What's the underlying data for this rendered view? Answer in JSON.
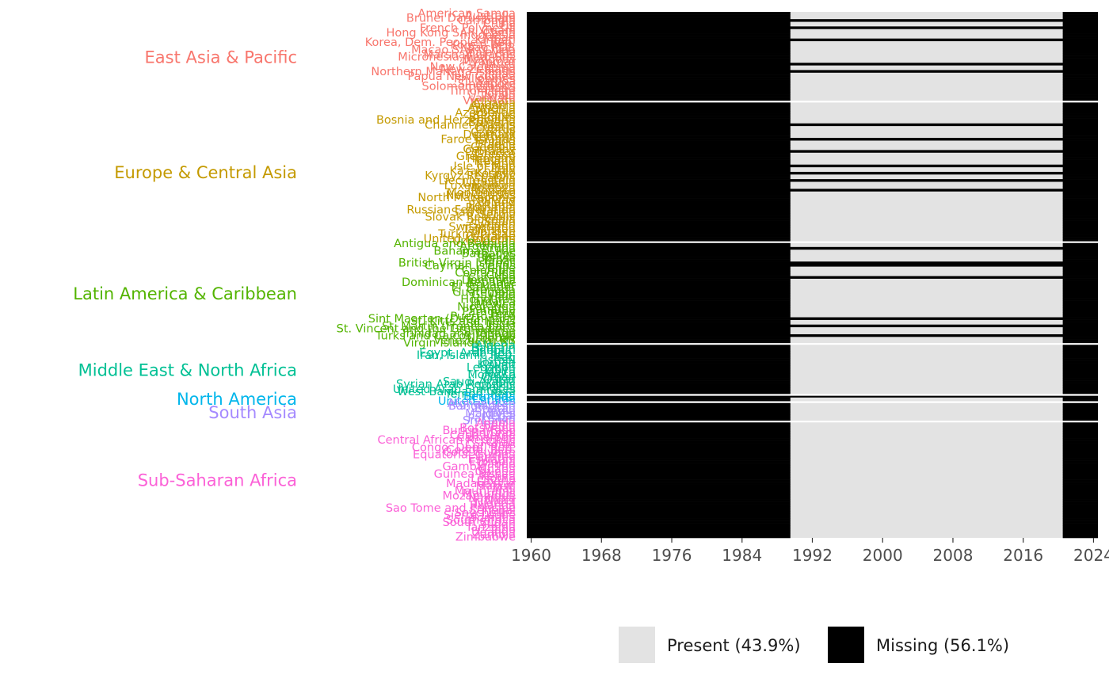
{
  "chart_data": {
    "type": "heatmap",
    "title": "",
    "xlabel": "",
    "ylabel": "",
    "x_ticks": [
      1960,
      1968,
      1976,
      1984,
      1992,
      2000,
      2008,
      2016,
      2024
    ],
    "xlim": [
      1960,
      2024
    ],
    "legend": {
      "placement": "bottom",
      "items": [
        {
          "key": "present",
          "label": "Present (43.9%)",
          "color": "#e3e3e3"
        },
        {
          "key": "missing",
          "label": "Missing (56.1%)",
          "color": "#000000"
        }
      ]
    },
    "default_pattern": {
      "missing": [
        [
          1960,
          1989
        ],
        [
          2021,
          2024
        ]
      ],
      "present": [
        [
          1990,
          2020
        ]
      ]
    },
    "regions": [
      {
        "name": "East Asia & Pacific",
        "color": "#f8766d",
        "countries": [
          "American Samoa",
          "Australia",
          "Brunei Darussalam",
          "Cambodia",
          "China",
          "Fiji",
          "French Polynesia",
          "Guam",
          "Hong Kong SAR, China",
          "Indonesia",
          "Japan",
          "Kiribati",
          "Korea, Dem. People's Rep.",
          "Korea, Rep.",
          "Lao PDR",
          "Macao SAR, China",
          "Malaysia",
          "Marshall Islands",
          "Micronesia, Fed. Sts.",
          "Mongolia",
          "Myanmar",
          "Nauru",
          "New Caledonia",
          "New Zealand",
          "Northern Mariana Islands",
          "Palau",
          "Papua New Guinea",
          "Philippines",
          "Samoa",
          "Singapore",
          "Solomon Islands",
          "Thailand",
          "Timor-Leste",
          "Tonga",
          "Tuvalu",
          "Vanuatu",
          "Viet Nam"
        ],
        "fully_missing": [
          "Cambodia",
          "French Polynesia",
          "Kiribati",
          "Nauru",
          "Northern Mariana Islands"
        ]
      },
      {
        "name": "Europe & Central Asia",
        "color": "#c49a00",
        "countries": [
          "Albania",
          "Andorra",
          "Armenia",
          "Austria",
          "Azerbaijan",
          "Belarus",
          "Belgium",
          "Bosnia and Herzegovina",
          "Bulgaria",
          "Channel Islands",
          "Croatia",
          "Cyprus",
          "Czechia",
          "Denmark",
          "Estonia",
          "Faroe Islands",
          "Finland",
          "France",
          "Georgia",
          "Germany",
          "Gibraltar",
          "Greece",
          "Greenland",
          "Hungary",
          "Iceland",
          "Ireland",
          "Isle of Man",
          "Italy",
          "Kazakhstan",
          "Kosovo",
          "Kyrgyz Republic",
          "Latvia",
          "Liechtenstein",
          "Lithuania",
          "Luxembourg",
          "Moldova",
          "Monaco",
          "Montenegro",
          "Netherlands",
          "North Macedonia",
          "Norway",
          "Poland",
          "Portugal",
          "Romania",
          "Russian Federation",
          "San Marino",
          "Serbia",
          "Slovak Republic",
          "Slovenia",
          "Spain",
          "Sweden",
          "Switzerland",
          "Tajikistan",
          "Turkiye",
          "Turkmenistan",
          "Ukraine",
          "United Kingdom",
          "Uzbekistan"
        ],
        "fully_missing": [
          "Channel Islands",
          "Faroe Islands",
          "Gibraltar",
          "Isle of Man",
          "Kosovo",
          "Liechtenstein",
          "Monaco"
        ]
      },
      {
        "name": "Latin America & Caribbean",
        "color": "#53b400",
        "countries": [
          "Antigua and Barbuda",
          "Argentina",
          "Aruba",
          "Bahamas, The",
          "Barbados",
          "Belize",
          "Bolivia",
          "Brazil",
          "British Virgin Islands",
          "Cayman Islands",
          "Chile",
          "Colombia",
          "Costa Rica",
          "Cuba",
          "Curacao",
          "Dominica",
          "Dominican Republic",
          "Ecuador",
          "El Salvador",
          "Grenada",
          "Guatemala",
          "Guyana",
          "Haiti",
          "Honduras",
          "Jamaica",
          "Mexico",
          "Nicaragua",
          "Panama",
          "Paraguay",
          "Peru",
          "Puerto Rico",
          "Sint Maarten (Dutch part)",
          "St. Kitts and Nevis",
          "St. Lucia",
          "St. Martin (French part)",
          "St. Vincent and the Grenadines",
          "Suriname",
          "Trinidad and Tobago",
          "Turks and Caicos Islands",
          "Uruguay",
          "Venezuela, RB",
          "Virgin Islands (U.S.)"
        ],
        "fully_missing": [
          "Aruba",
          "British Virgin Islands",
          "Cayman Islands",
          "Curacao",
          "Sint Maarten (Dutch part)",
          "St. Martin (French part)",
          "Turks and Caicos Islands"
        ]
      },
      {
        "name": "Middle East & North Africa",
        "color": "#00c094",
        "countries": [
          "Algeria",
          "Bahrain",
          "Djibouti",
          "Egypt, Arab Rep.",
          "Iran, Islamic Rep.",
          "Iraq",
          "Israel",
          "Jordan",
          "Kuwait",
          "Lebanon",
          "Libya",
          "Malta",
          "Morocco",
          "Oman",
          "Qatar",
          "Saudi Arabia",
          "Syrian Arab Republic",
          "Tunisia",
          "United Arab Emirates",
          "West Bank and Gaza",
          "Yemen, Rep."
        ],
        "fully_missing": []
      },
      {
        "name": "North America",
        "color": "#00b6eb",
        "countries": [
          "Bermuda",
          "Canada",
          "United States"
        ],
        "fully_missing": [
          "Bermuda"
        ]
      },
      {
        "name": "South Asia",
        "color": "#a58aff",
        "countries": [
          "Afghanistan",
          "Bangladesh",
          "Bhutan",
          "India",
          "Maldives",
          "Nepal",
          "Pakistan",
          "Sri Lanka"
        ],
        "fully_missing": []
      },
      {
        "name": "Sub-Saharan Africa",
        "color": "#fb61d7",
        "countries": [
          "Angola",
          "Benin",
          "Botswana",
          "Burkina Faso",
          "Burundi",
          "Cabo Verde",
          "Cameroon",
          "Central African Republic",
          "Chad",
          "Comoros",
          "Congo, Dem. Rep.",
          "Congo, Rep.",
          "Cote d'Ivoire",
          "Equatorial Guinea",
          "Eritrea",
          "Eswatini",
          "Ethiopia",
          "Gabon",
          "Gambia, The",
          "Ghana",
          "Guinea",
          "Guinea-Bissau",
          "Kenya",
          "Lesotho",
          "Liberia",
          "Madagascar",
          "Malawi",
          "Mali",
          "Mauritania",
          "Mauritius",
          "Mozambique",
          "Namibia",
          "Niger",
          "Nigeria",
          "Rwanda",
          "Sao Tome and Principe",
          "Senegal",
          "Seychelles",
          "Sierra Leone",
          "Somalia",
          "South Africa",
          "South Sudan",
          "Sudan",
          "Tanzania",
          "Togo",
          "Uganda",
          "Zambia",
          "Zimbabwe"
        ],
        "fully_missing": []
      }
    ]
  }
}
